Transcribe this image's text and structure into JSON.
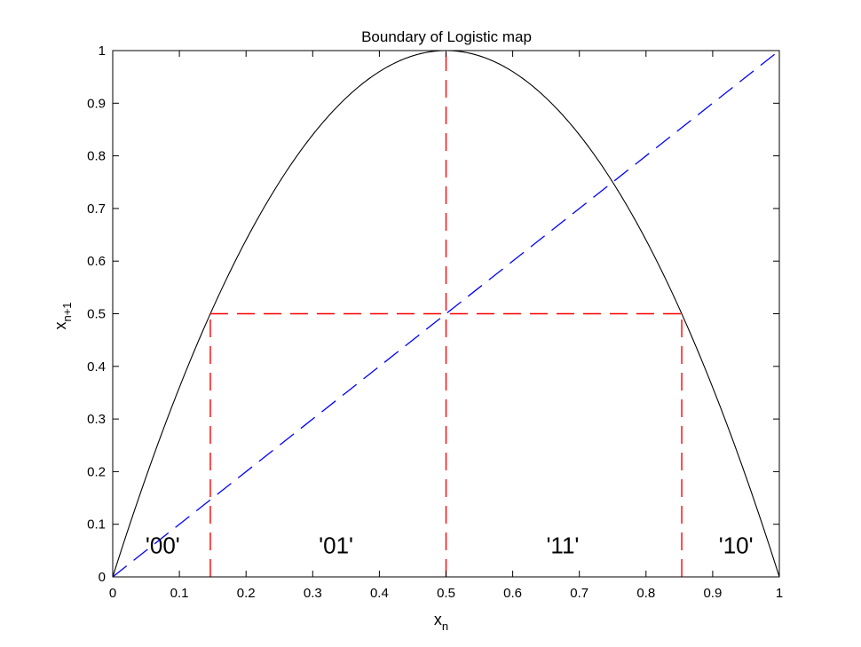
{
  "chart_data": {
    "type": "line",
    "title": "Boundary of Logistic map",
    "xlabel": {
      "main": "x",
      "sub": "n"
    },
    "ylabel": {
      "main": "x",
      "sub": "n+1"
    },
    "xlim": [
      0,
      1
    ],
    "ylim": [
      0,
      1
    ],
    "xticks": [
      0,
      0.1,
      0.2,
      0.3,
      0.4,
      0.5,
      0.6,
      0.7,
      0.8,
      0.9,
      1
    ],
    "yticks": [
      0,
      0.1,
      0.2,
      0.3,
      0.4,
      0.5,
      0.6,
      0.7,
      0.8,
      0.9,
      1
    ],
    "xtick_labels": [
      "0",
      "0.1",
      "0.2",
      "0.3",
      "0.4",
      "0.5",
      "0.6",
      "0.7",
      "0.8",
      "0.9",
      "1"
    ],
    "ytick_labels": [
      "0",
      "0.1",
      "0.2",
      "0.3",
      "0.4",
      "0.5",
      "0.6",
      "0.7",
      "0.8",
      "0.9",
      "1"
    ],
    "grid": false,
    "box": true,
    "series": [
      {
        "kind": "curve",
        "formula": "4x(1-x)",
        "color": "#000000",
        "style": "solid",
        "x": [
          0,
          0.05,
          0.1,
          0.15,
          0.2,
          0.25,
          0.3,
          0.35,
          0.4,
          0.45,
          0.5,
          0.55,
          0.6,
          0.65,
          0.7,
          0.75,
          0.8,
          0.85,
          0.9,
          0.95,
          1
        ],
        "y": [
          0,
          0.19,
          0.36,
          0.51,
          0.64,
          0.75,
          0.84,
          0.91,
          0.96,
          0.99,
          1,
          0.99,
          0.96,
          0.91,
          0.84,
          0.75,
          0.64,
          0.51,
          0.36,
          0.19,
          0
        ]
      },
      {
        "kind": "diagonal",
        "color": "#0000ff",
        "style": "dashed",
        "x": [
          0,
          1
        ],
        "y": [
          0,
          1
        ]
      }
    ],
    "guides": [
      {
        "color": "#ff0000",
        "style": "dashed",
        "x": [
          0.1464,
          0.1464
        ],
        "y": [
          0,
          0.5
        ]
      },
      {
        "color": "#ff0000",
        "style": "dashed",
        "x": [
          0.5,
          0.5
        ],
        "y": [
          0,
          1
        ]
      },
      {
        "color": "#ff0000",
        "style": "dashed",
        "x": [
          0.8536,
          0.8536
        ],
        "y": [
          0,
          0.5
        ]
      },
      {
        "color": "#ff0000",
        "style": "dashed",
        "x": [
          0.1464,
          0.8536
        ],
        "y": [
          0.5,
          0.5
        ]
      }
    ],
    "annotations": [
      {
        "text": "'00'",
        "x": 0.075,
        "y": 0.045
      },
      {
        "text": "'01'",
        "x": 0.335,
        "y": 0.045
      },
      {
        "text": "'11'",
        "x": 0.675,
        "y": 0.045
      },
      {
        "text": "'10'",
        "x": 0.935,
        "y": 0.045
      }
    ]
  }
}
